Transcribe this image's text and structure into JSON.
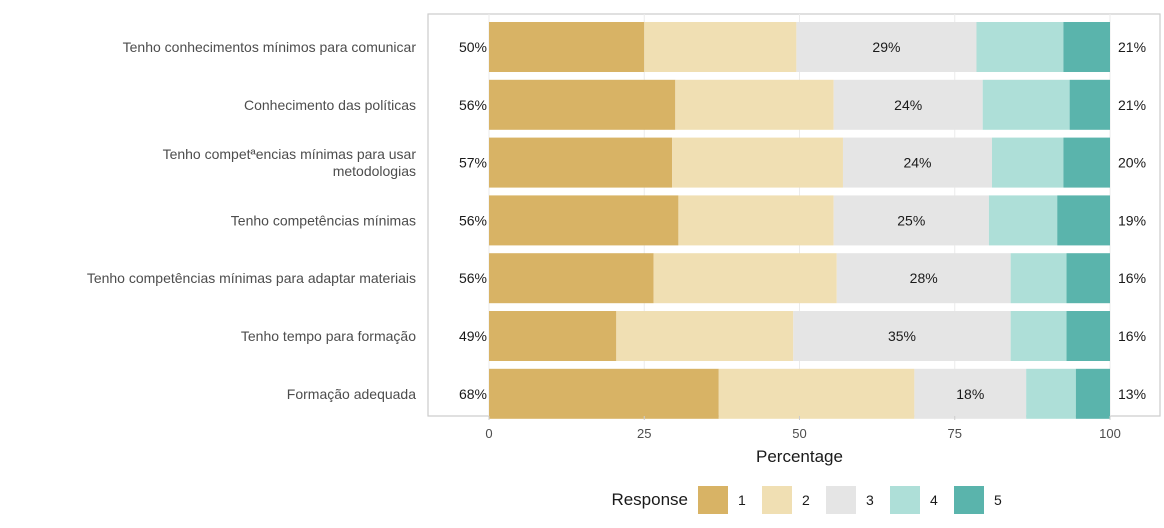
{
  "chart_data": {
    "type": "bar",
    "orientation": "horizontal",
    "stacked": true,
    "categories": [
      "Tenho conhecimentos mínimos para comunicar",
      "Conhecimento das políticas",
      "Tenho competªencias mínimas para usar\nmetodologias",
      "Tenho competências mínimas",
      "Tenho competências mínimas para adaptar materiais",
      "Tenho tempo para formação",
      "Formação adequada"
    ],
    "series": [
      {
        "name": "1",
        "color": "#d8b365",
        "values": [
          25,
          30,
          29.5,
          30.5,
          26.5,
          20.5,
          37
        ]
      },
      {
        "name": "2",
        "color": "#f0dfb3",
        "values": [
          24.5,
          25.5,
          27.5,
          25,
          29.5,
          28.5,
          31.5
        ]
      },
      {
        "name": "3",
        "color": "#e5e5e5",
        "values": [
          29,
          24,
          24,
          25,
          28,
          35,
          18
        ]
      },
      {
        "name": "4",
        "color": "#aedfd8",
        "values": [
          14,
          14,
          11.5,
          11,
          9,
          9,
          8
        ]
      },
      {
        "name": "5",
        "color": "#5ab4ac",
        "values": [
          7.5,
          6.5,
          7.5,
          8.5,
          7,
          7,
          5.5
        ]
      }
    ],
    "left_labels": [
      "50%",
      "56%",
      "57%",
      "56%",
      "56%",
      "49%",
      "68%"
    ],
    "mid_labels": [
      "29%",
      "24%",
      "24%",
      "25%",
      "28%",
      "35%",
      "18%"
    ],
    "right_labels": [
      "21%",
      "21%",
      "20%",
      "19%",
      "16%",
      "16%",
      "13%"
    ],
    "xlabel": "Percentage",
    "ylabel": "",
    "xlim": [
      0,
      100
    ],
    "xticks": [
      0,
      25,
      50,
      75,
      100
    ],
    "legend": {
      "title": "Response",
      "position": "bottom"
    }
  }
}
